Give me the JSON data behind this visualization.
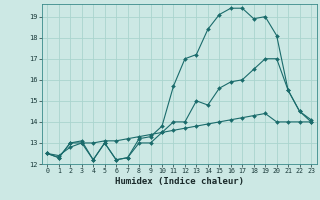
{
  "xlabel": "Humidex (Indice chaleur)",
  "background_color": "#cce8e4",
  "grid_color": "#aad4ce",
  "line_color": "#1a6b6b",
  "xlim": [
    -0.5,
    23.5
  ],
  "ylim": [
    12,
    19.6
  ],
  "yticks": [
    12,
    13,
    14,
    15,
    16,
    17,
    18,
    19
  ],
  "xticks": [
    0,
    1,
    2,
    3,
    4,
    5,
    6,
    7,
    8,
    9,
    10,
    11,
    12,
    13,
    14,
    15,
    16,
    17,
    18,
    19,
    20,
    21,
    22,
    23
  ],
  "line_jagged_x": [
    0,
    1,
    2,
    3,
    4,
    5,
    6,
    7,
    8,
    9,
    10,
    11,
    12,
    13,
    14,
    15,
    16,
    17,
    18,
    19,
    20,
    21,
    22,
    23
  ],
  "line_jagged_y": [
    12.5,
    12.3,
    13.0,
    13.0,
    12.2,
    13.0,
    12.2,
    12.3,
    13.0,
    13.0,
    13.5,
    14.0,
    14.0,
    15.0,
    14.8,
    15.6,
    15.9,
    16.0,
    16.5,
    17.0,
    17.0,
    15.5,
    14.5,
    14.0
  ],
  "line_peak_x": [
    0,
    1,
    2,
    3,
    4,
    5,
    6,
    7,
    8,
    9,
    10,
    11,
    12,
    13,
    14,
    15,
    16,
    17,
    18,
    19,
    20,
    21,
    22,
    23
  ],
  "line_peak_y": [
    12.5,
    12.3,
    13.0,
    13.1,
    12.2,
    13.0,
    12.2,
    12.3,
    13.2,
    13.3,
    13.8,
    15.7,
    17.0,
    17.2,
    18.4,
    19.1,
    19.4,
    19.4,
    18.9,
    19.0,
    18.1,
    15.5,
    14.5,
    14.1
  ],
  "line_smooth_x": [
    0,
    1,
    2,
    3,
    4,
    5,
    6,
    7,
    8,
    9,
    10,
    11,
    12,
    13,
    14,
    15,
    16,
    17,
    18,
    19,
    20,
    21,
    22,
    23
  ],
  "line_smooth_y": [
    12.5,
    12.4,
    12.8,
    13.0,
    13.0,
    13.1,
    13.1,
    13.2,
    13.3,
    13.4,
    13.5,
    13.6,
    13.7,
    13.8,
    13.9,
    14.0,
    14.1,
    14.2,
    14.3,
    14.4,
    14.0,
    14.0,
    14.0,
    14.0
  ]
}
